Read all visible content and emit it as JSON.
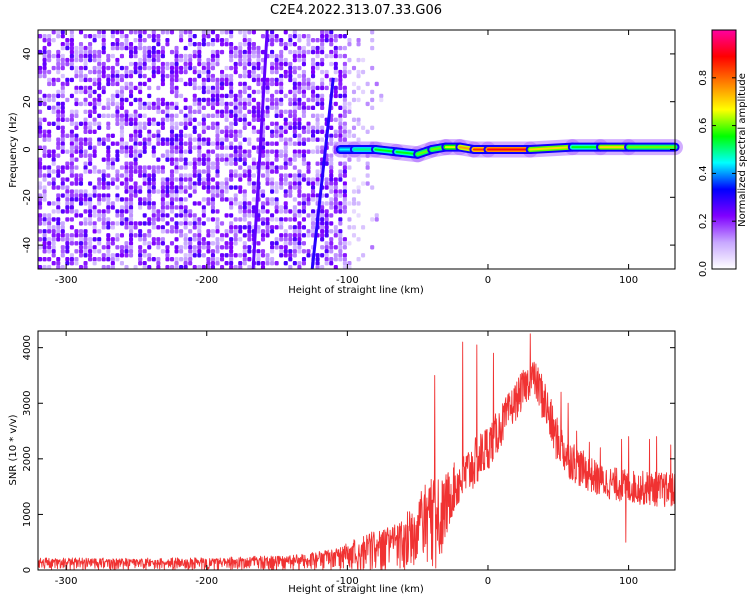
{
  "figure": {
    "title": "C2E4.2022.313.07.33.G06"
  },
  "chart_data": [
    {
      "type": "heatmap",
      "xlabel": "Height of straight line (km)",
      "ylabel": "Frequency (Hz)",
      "xlim": [
        -320,
        133
      ],
      "ylim": [
        -50,
        50
      ],
      "xticks": [
        -300,
        -200,
        -100,
        0,
        100
      ],
      "yticks": [
        -40,
        -20,
        0,
        20,
        40
      ],
      "colorbar": {
        "label": "Normalized spectral amplitude",
        "range": [
          0,
          1
        ],
        "ticks": [
          0.0,
          0.2,
          0.4,
          0.6,
          0.8
        ],
        "tick_labels": [
          "0.0",
          "0.2",
          "0.4",
          "0.6",
          "0.8"
        ],
        "colormap": [
          "#ffffff",
          "#c8a8ff",
          "#8000ff",
          "#0000ff",
          "#00ffff",
          "#00ff00",
          "#ffff00",
          "#ff8000",
          "#ff0000",
          "#ff00a0"
        ]
      },
      "features": {
        "noise_region_x": [
          -320,
          -100
        ],
        "noise_level": 0.22,
        "streaks": [
          {
            "x_start": -167,
            "y_start": -50,
            "x_end": -157,
            "y_end": 50,
            "level": 0.25
          },
          {
            "x_start": -125,
            "y_start": -50,
            "x_end": -110,
            "y_end": 30,
            "level": 0.3
          }
        ],
        "tone_line": {
          "x": [
            -105,
            -95,
            -80,
            -65,
            -50,
            -40,
            -30,
            -20,
            -10,
            0,
            30,
            60,
            80,
            100,
            133
          ],
          "y": [
            0,
            0,
            0,
            -1,
            -2,
            0,
            1,
            1,
            0,
            0,
            0,
            1,
            1,
            1,
            1
          ],
          "level": [
            0.45,
            0.5,
            0.55,
            0.55,
            0.6,
            0.6,
            0.65,
            0.75,
            0.85,
            0.9,
            0.7,
            0.55,
            0.7,
            0.6,
            0.5
          ]
        }
      }
    },
    {
      "type": "line",
      "xlabel": "Height of straight line (km)",
      "ylabel": "SNR (10 * v/v)",
      "xlim": [
        -320,
        133
      ],
      "ylim": [
        0,
        4300
      ],
      "xticks": [
        -300,
        -200,
        -100,
        0,
        100
      ],
      "yticks": [
        0,
        1000,
        2000,
        3000,
        4000
      ],
      "color": "#f03232",
      "series": [
        {
          "x": [
            -320,
            -280,
            -240,
            -200,
            -160,
            -130,
            -110,
            -95,
            -80,
            -65,
            -55,
            -45,
            -35,
            -25,
            -15,
            -5,
            5,
            15,
            25,
            32,
            40,
            48,
            55,
            65,
            80,
            100,
            133
          ],
          "y": [
            200,
            200,
            200,
            210,
            230,
            260,
            350,
            500,
            650,
            800,
            1000,
            1400,
            1600,
            1900,
            2200,
            2500,
            2800,
            3200,
            3600,
            3800,
            3500,
            2800,
            2500,
            2200,
            1900,
            1800,
            1750
          ],
          "spikes": [
            {
              "x": -38,
              "y": 3500
            },
            {
              "x": -18,
              "y": 4100
            },
            {
              "x": -8,
              "y": 4050
            },
            {
              "x": 4,
              "y": 3900
            },
            {
              "x": 30,
              "y": 4250
            },
            {
              "x": 52,
              "y": 3200
            },
            {
              "x": 57,
              "y": 3000
            },
            {
              "x": 63,
              "y": 2500
            },
            {
              "x": 72,
              "y": 2300
            },
            {
              "x": 80,
              "y": 2200
            },
            {
              "x": 95,
              "y": 2350
            },
            {
              "x": 100,
              "y": 2400
            },
            {
              "x": 115,
              "y": 2350
            },
            {
              "x": 120,
              "y": 2400
            },
            {
              "x": 130,
              "y": 2250
            },
            {
              "x": 98,
              "y": 500
            }
          ],
          "band_min": [
            0,
            0,
            0,
            0,
            0,
            0,
            0,
            0,
            0,
            0,
            0,
            0,
            0,
            1000,
            1300,
            1600,
            2000,
            2500,
            2900,
            3200,
            2600,
            2000,
            1700,
            1500,
            1300,
            1200,
            1100
          ]
        }
      ]
    }
  ]
}
